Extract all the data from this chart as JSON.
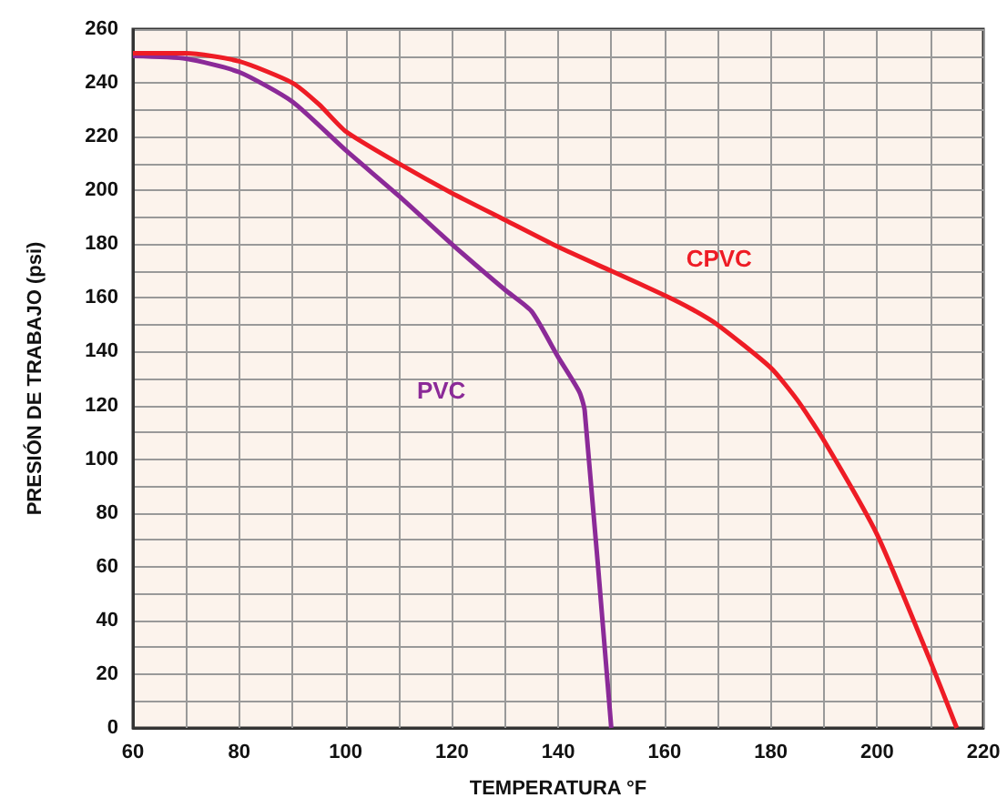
{
  "chart_data": {
    "type": "line",
    "xlabel": "TEMPERATURA °F",
    "ylabel": "PRESIÓN DE TRABAJO (psi)",
    "xlim": [
      60,
      220
    ],
    "xticks": [
      60,
      {
        "value": 70,
        "label": null
      },
      80,
      {
        "value": 90,
        "label": null
      },
      100,
      {
        "value": 110,
        "label": null
      },
      120,
      {
        "value": 130,
        "label": null
      },
      140,
      {
        "value": 150,
        "label": null
      },
      160,
      {
        "value": 170,
        "label": null
      },
      180,
      {
        "value": 190,
        "label": null
      },
      200,
      {
        "value": 210,
        "label": null
      },
      220
    ],
    "ylim": [
      0,
      260
    ],
    "yticks": [
      0,
      {
        "value": 10,
        "label": null
      },
      20,
      {
        "value": 30,
        "label": null
      },
      40,
      {
        "value": 50,
        "label": null
      },
      60,
      {
        "value": 70,
        "label": null
      },
      80,
      {
        "value": 90,
        "label": null
      },
      100,
      {
        "value": 110,
        "label": null
      },
      120,
      {
        "value": 130,
        "label": null
      },
      140,
      {
        "value": 150,
        "label": null
      },
      160,
      {
        "value": 170,
        "label": null
      },
      180,
      {
        "value": 190,
        "label": null
      },
      200,
      {
        "value": 210,
        "label": null
      },
      220,
      {
        "value": 230,
        "label": null
      },
      240,
      {
        "value": 250,
        "label": null
      },
      260
    ],
    "grid": true,
    "marker": "none",
    "line_style": "solid",
    "series": [
      {
        "name": "PVC",
        "color": "#8b2a98",
        "x": [
          60,
          70,
          80,
          90,
          100,
          110,
          120,
          130,
          135,
          140,
          144,
          145,
          150
        ],
        "values": [
          250,
          249,
          244,
          233,
          215,
          198,
          180,
          163,
          155,
          138,
          125,
          118,
          0
        ]
      },
      {
        "name": "CPVC",
        "color": "#ee1c25",
        "x": [
          60,
          70,
          80,
          90,
          95,
          100,
          110,
          120,
          130,
          140,
          150,
          160,
          165,
          170,
          180,
          185,
          190,
          200,
          210,
          215
        ],
        "values": [
          251,
          251,
          248,
          240,
          232,
          222,
          210,
          199,
          189,
          179,
          170,
          161,
          156,
          150,
          134,
          122,
          107,
          72,
          25,
          0
        ]
      }
    ]
  }
}
